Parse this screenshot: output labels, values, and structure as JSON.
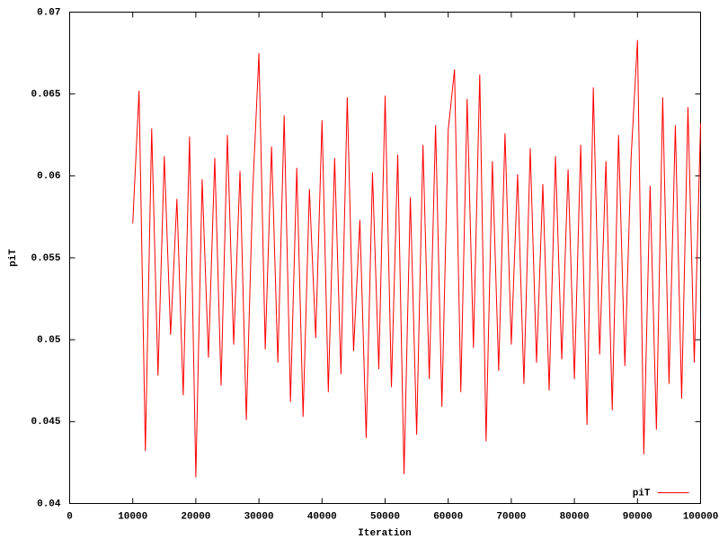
{
  "chart_data": {
    "type": "line",
    "xlabel": "Iteration",
    "ylabel": "piT",
    "x": [
      10000,
      11000,
      12000,
      13000,
      14000,
      15000,
      16000,
      17000,
      18000,
      19000,
      20000,
      21000,
      22000,
      23000,
      24000,
      25000,
      26000,
      27000,
      28000,
      29000,
      30000,
      31000,
      32000,
      33000,
      34000,
      35000,
      36000,
      37000,
      38000,
      39000,
      40000,
      41000,
      42000,
      43000,
      44000,
      45000,
      46000,
      47000,
      48000,
      49000,
      50000,
      51000,
      52000,
      53000,
      54000,
      55000,
      56000,
      57000,
      58000,
      59000,
      60000,
      61000,
      62000,
      63000,
      64000,
      65000,
      66000,
      67000,
      68000,
      69000,
      70000,
      71000,
      72000,
      73000,
      74000,
      75000,
      76000,
      77000,
      78000,
      79000,
      80000,
      81000,
      82000,
      83000,
      84000,
      85000,
      86000,
      87000,
      88000,
      89000,
      90000,
      91000,
      92000,
      93000,
      94000,
      95000,
      96000,
      97000,
      98000,
      99000,
      100000
    ],
    "series": [
      {
        "name": "piT",
        "color": "#ff0000",
        "values": [
          0.0571,
          0.0652,
          0.0432,
          0.0629,
          0.0478,
          0.0612,
          0.0503,
          0.0586,
          0.0466,
          0.0624,
          0.0416,
          0.0598,
          0.0489,
          0.0611,
          0.0472,
          0.0625,
          0.0497,
          0.0603,
          0.0451,
          0.0589,
          0.0675,
          0.0494,
          0.0618,
          0.0486,
          0.0637,
          0.0462,
          0.0605,
          0.0453,
          0.0592,
          0.0501,
          0.0634,
          0.0468,
          0.0611,
          0.0479,
          0.0648,
          0.0493,
          0.0573,
          0.044,
          0.0602,
          0.0482,
          0.0649,
          0.0471,
          0.0613,
          0.0418,
          0.0587,
          0.0442,
          0.0619,
          0.0476,
          0.0631,
          0.0459,
          0.0628,
          0.0665,
          0.0468,
          0.0647,
          0.0495,
          0.0662,
          0.0438,
          0.0609,
          0.0481,
          0.0626,
          0.0497,
          0.0601,
          0.0473,
          0.0617,
          0.0486,
          0.0595,
          0.0469,
          0.0612,
          0.0488,
          0.0604,
          0.0476,
          0.0619,
          0.0448,
          0.0654,
          0.0491,
          0.0609,
          0.0457,
          0.0625,
          0.0484,
          0.0612,
          0.0683,
          0.043,
          0.0594,
          0.0445,
          0.0648,
          0.0473,
          0.0631,
          0.0464,
          0.0642,
          0.0486,
          0.0632
        ]
      }
    ],
    "xlim": [
      0,
      100000
    ],
    "xticks": [
      0,
      10000,
      20000,
      30000,
      40000,
      50000,
      60000,
      70000,
      80000,
      90000,
      100000
    ],
    "ylim": [
      0.04,
      0.07
    ],
    "yticks": [
      0.04,
      0.045,
      0.05,
      0.055,
      0.06,
      0.065,
      0.07
    ],
    "grid": false,
    "legend": "bottom right"
  }
}
